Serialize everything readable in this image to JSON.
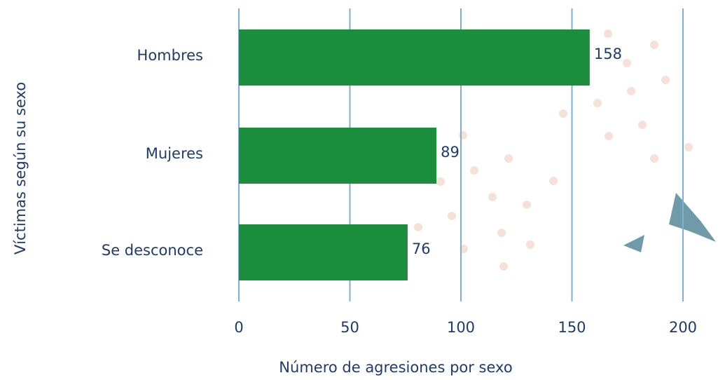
{
  "chart_data": {
    "type": "hbar",
    "x_label": "Número de agresiones por sexo",
    "y_label": "Víctimas según su sexo",
    "categories": [
      "Hombres",
      "Mujeres",
      "Se desconoce"
    ],
    "values": [
      158,
      89,
      76
    ],
    "color": "#1b8e3e",
    "xlim": [
      0,
      200
    ],
    "xticks": [
      0,
      50,
      100,
      150,
      200
    ],
    "grid": true
  }
}
